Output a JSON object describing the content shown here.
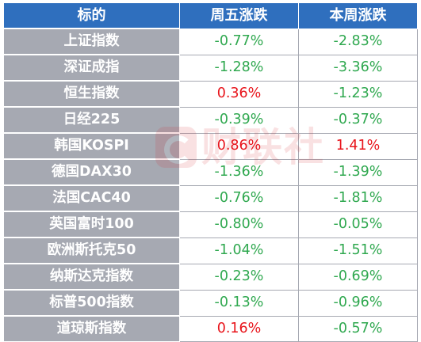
{
  "colors": {
    "header_bg": "#2f6fbe",
    "name_bg": "#a6a9b2",
    "negative": "#2fa84f",
    "positive": "#e8141b"
  },
  "header": {
    "name_col": "标的",
    "friday_col": "周五涨跌",
    "week_col": "本周涨跌"
  },
  "rows": [
    {
      "name": "上证指数",
      "friday": "-0.77%",
      "week": "-2.83%"
    },
    {
      "name": "深证成指",
      "friday": "-1.28%",
      "week": "-3.36%"
    },
    {
      "name": "恒生指数",
      "friday": "0.36%",
      "week": "-1.23%"
    },
    {
      "name": "日经225",
      "friday": "-0.39%",
      "week": "-0.37%"
    },
    {
      "name": "韩国KOSPI",
      "friday": "0.86%",
      "week": "1.41%"
    },
    {
      "name": "德国DAX30",
      "friday": "-1.36%",
      "week": "-1.39%"
    },
    {
      "name": "法国CAC40",
      "friday": "-0.76%",
      "week": "-1.81%"
    },
    {
      "name": "英国富时100",
      "friday": "-0.80%",
      "week": "-0.05%"
    },
    {
      "name": "欧洲斯托克50",
      "friday": "-1.04%",
      "week": "-1.51%"
    },
    {
      "name": "纳斯达克指数",
      "friday": "-0.23%",
      "week": "-0.69%"
    },
    {
      "name": "标普500指数",
      "friday": "-0.13%",
      "week": "-0.96%"
    },
    {
      "name": "道琼斯指数",
      "friday": "0.16%",
      "week": "-0.57%"
    }
  ],
  "watermark": {
    "icon": "cls-logo-icon",
    "text": "财联社"
  }
}
